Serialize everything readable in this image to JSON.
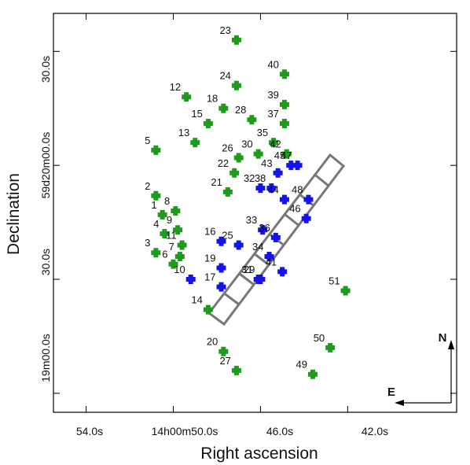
{
  "chart_data": {
    "type": "scatter",
    "xlabel": "Right ascension",
    "ylabel": "Declination",
    "x_ticks": [
      "54.0s",
      "14h00m50.0s",
      "46.0s",
      "42.0s"
    ],
    "y_ticks": [
      "30.0s",
      "59d20m00.0s",
      "30.0s",
      "19m00.0s"
    ],
    "compass": {
      "north": "N",
      "east": "E"
    },
    "colors": {
      "series_a": "#1f9a1f",
      "series_b": "#1414e6",
      "slit": "#777777"
    },
    "series": [
      {
        "points": [
          {
            "id": "1",
            "x": 50.5,
            "y": 47
          },
          {
            "id": "2",
            "x": 50.8,
            "y": 52
          },
          {
            "id": "3",
            "x": 50.8,
            "y": 37
          },
          {
            "id": "4",
            "x": 50.4,
            "y": 42
          },
          {
            "id": "5",
            "x": 50.8,
            "y": 64
          },
          {
            "id": "6",
            "x": 50.0,
            "y": 34
          },
          {
            "id": "7",
            "x": 49.7,
            "y": 36
          },
          {
            "id": "8",
            "x": 49.9,
            "y": 48
          },
          {
            "id": "9",
            "x": 49.8,
            "y": 43
          },
          {
            "id": "11",
            "x": 49.6,
            "y": 39
          },
          {
            "id": "12",
            "x": 49.4,
            "y": 78
          },
          {
            "id": "13",
            "x": 49.0,
            "y": 66
          },
          {
            "id": "14",
            "x": 48.4,
            "y": 22
          },
          {
            "id": "15",
            "x": 48.4,
            "y": 71
          },
          {
            "id": "18",
            "x": 47.7,
            "y": 75
          },
          {
            "id": "20",
            "x": 47.7,
            "y": 11
          },
          {
            "id": "21",
            "x": 47.5,
            "y": 53
          },
          {
            "id": "22",
            "x": 47.2,
            "y": 58
          },
          {
            "id": "23",
            "x": 47.1,
            "y": 93
          },
          {
            "id": "24",
            "x": 47.1,
            "y": 81
          },
          {
            "id": "26",
            "x": 47.0,
            "y": 62
          },
          {
            "id": "27",
            "x": 47.1,
            "y": 6
          },
          {
            "id": "28",
            "x": 46.4,
            "y": 72
          },
          {
            "id": "30",
            "x": 46.1,
            "y": 63
          },
          {
            "id": "35",
            "x": 45.4,
            "y": 66
          },
          {
            "id": "37",
            "x": 44.9,
            "y": 71
          },
          {
            "id": "39",
            "x": 44.9,
            "y": 76
          },
          {
            "id": "40",
            "x": 44.9,
            "y": 84
          },
          {
            "id": "42",
            "x": 44.8,
            "y": 63
          },
          {
            "id": "49",
            "x": 43.6,
            "y": 5
          },
          {
            "id": "50",
            "x": 42.8,
            "y": 12
          },
          {
            "id": "51",
            "x": 42.1,
            "y": 27
          }
        ]
      },
      {
        "points": [
          {
            "id": "10",
            "x": 49.2,
            "y": 30
          },
          {
            "id": "16",
            "x": 47.8,
            "y": 40
          },
          {
            "id": "17",
            "x": 47.8,
            "y": 28
          },
          {
            "id": "19",
            "x": 47.8,
            "y": 33
          },
          {
            "id": "25",
            "x": 47.0,
            "y": 39
          },
          {
            "id": "29",
            "x": 46.0,
            "y": 30
          },
          {
            "id": "31",
            "x": 46.1,
            "y": 30
          },
          {
            "id": "32",
            "x": 46.0,
            "y": 54
          },
          {
            "id": "33",
            "x": 45.9,
            "y": 43
          },
          {
            "id": "34",
            "x": 45.6,
            "y": 36
          },
          {
            "id": "36",
            "x": 45.3,
            "y": 41
          },
          {
            "id": "38",
            "x": 45.5,
            "y": 54
          },
          {
            "id": "41",
            "x": 45.0,
            "y": 32
          },
          {
            "id": "43",
            "x": 45.2,
            "y": 58
          },
          {
            "id": "44",
            "x": 44.9,
            "y": 51
          },
          {
            "id": "45",
            "x": 44.6,
            "y": 60
          },
          {
            "id": "46",
            "x": 43.9,
            "y": 46
          },
          {
            "id": "47",
            "x": 44.3,
            "y": 60
          },
          {
            "id": "48",
            "x": 43.8,
            "y": 51
          }
        ]
      }
    ]
  }
}
